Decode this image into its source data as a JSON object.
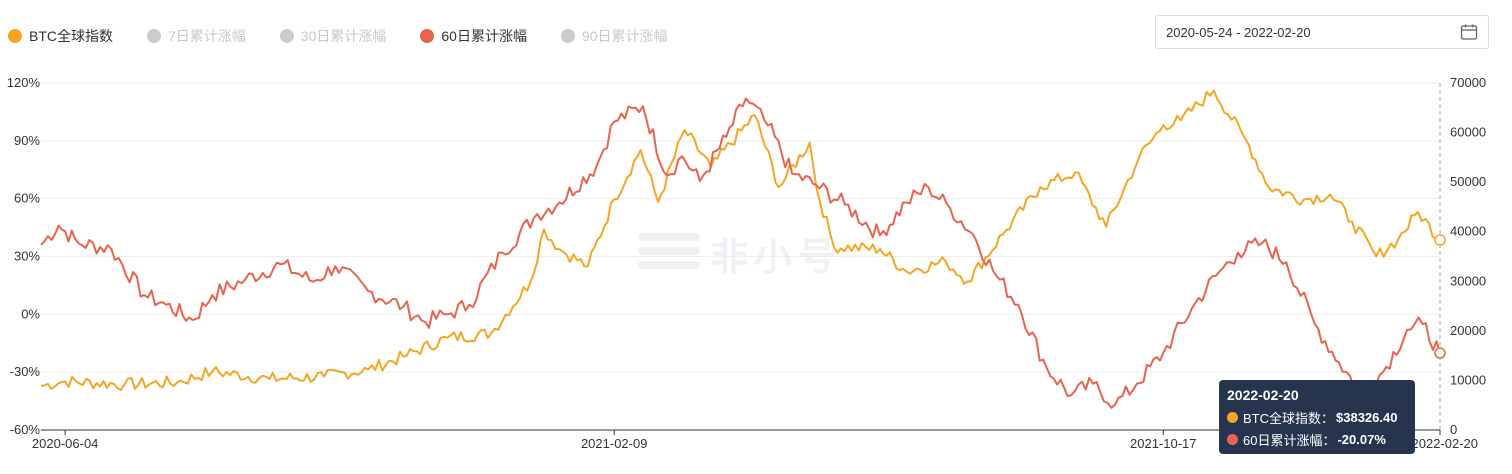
{
  "legend": {
    "items": [
      {
        "label": "BTC全球指数",
        "color": "#f5a623",
        "active": true
      },
      {
        "label": "7日累计涨幅",
        "color": "#cccccc",
        "active": false
      },
      {
        "label": "30日累计涨幅",
        "color": "#cccccc",
        "active": false
      },
      {
        "label": "60日累计涨幅",
        "color": "#e8644f",
        "active": true
      },
      {
        "label": "90日累计涨幅",
        "color": "#cccccc",
        "active": false
      }
    ]
  },
  "date_range": {
    "value": "2020-05-24 - 2022-02-20",
    "icon": "calendar-icon"
  },
  "watermark": {
    "text": "非小号"
  },
  "tooltip": {
    "date": "2022-02-20",
    "rows": [
      {
        "name": "BTC全球指数：",
        "value": "$38326.40",
        "color": "#f5a623"
      },
      {
        "name": "60日累计涨幅：",
        "value": "-20.07%",
        "color": "#e8644f"
      }
    ]
  },
  "chart_data": {
    "type": "line",
    "title": "",
    "x_ticks": [
      "2020-06-04",
      "2021-02-09",
      "2021-10-17",
      "2022-02-20"
    ],
    "x_range": [
      "2020-05-24",
      "2022-02-20"
    ],
    "y_left": {
      "ticks": [
        "120%",
        "90%",
        "60%",
        "30%",
        "0%",
        "-30%",
        "-60%"
      ],
      "min": -60,
      "max": 120,
      "unit": "%"
    },
    "y_right": {
      "ticks": [
        "70000",
        "60000",
        "50000",
        "40000",
        "30000",
        "20000",
        "10000",
        "0"
      ],
      "min": 0,
      "max": 70000
    },
    "grid": true,
    "series": [
      {
        "name": "BTC全球指数",
        "axis": "right",
        "color": "#f5a623",
        "points": [
          [
            "2020-05-24",
            8900
          ],
          [
            "2020-06-04",
            9800
          ],
          [
            "2020-07-01",
            9200
          ],
          [
            "2020-07-25",
            9600
          ],
          [
            "2020-08-10",
            11800
          ],
          [
            "2020-09-05",
            10300
          ],
          [
            "2020-09-30",
            10800
          ],
          [
            "2020-10-20",
            12200
          ],
          [
            "2020-11-05",
            14800
          ],
          [
            "2020-11-25",
            18600
          ],
          [
            "2020-12-15",
            19500
          ],
          [
            "2021-01-02",
            30000
          ],
          [
            "2021-01-08",
            40500
          ],
          [
            "2021-01-15",
            36500
          ],
          [
            "2021-01-28",
            33000
          ],
          [
            "2021-02-09",
            46500
          ],
          [
            "2021-02-21",
            56500
          ],
          [
            "2021-03-01",
            46000
          ],
          [
            "2021-03-13",
            60500
          ],
          [
            "2021-03-25",
            53000
          ],
          [
            "2021-04-14",
            63500
          ],
          [
            "2021-04-25",
            49000
          ],
          [
            "2021-05-09",
            58000
          ],
          [
            "2021-05-12",
            49000
          ],
          [
            "2021-05-20",
            37000
          ],
          [
            "2021-06-10",
            36500
          ],
          [
            "2021-06-22",
            32000
          ],
          [
            "2021-07-10",
            34000
          ],
          [
            "2021-07-20",
            30000
          ],
          [
            "2021-08-05",
            39500
          ],
          [
            "2021-08-22",
            49000
          ],
          [
            "2021-09-07",
            52000
          ],
          [
            "2021-09-21",
            41000
          ],
          [
            "2021-10-06",
            55000
          ],
          [
            "2021-10-17",
            61500
          ],
          [
            "2021-10-25",
            62500
          ],
          [
            "2021-11-09",
            68500
          ],
          [
            "2021-11-25",
            57500
          ],
          [
            "2021-12-04",
            49000
          ],
          [
            "2021-12-20",
            46500
          ],
          [
            "2022-01-01",
            47500
          ],
          [
            "2022-01-11",
            42000
          ],
          [
            "2022-01-22",
            35000
          ],
          [
            "2022-02-01",
            38500
          ],
          [
            "2022-02-10",
            44000
          ],
          [
            "2022-02-20",
            38326.4
          ]
        ]
      },
      {
        "name": "60日累计涨幅",
        "axis": "left",
        "color": "#e8644f",
        "points": [
          [
            "2020-05-24",
            36
          ],
          [
            "2020-06-01",
            46
          ],
          [
            "2020-06-10",
            37
          ],
          [
            "2020-06-25",
            34
          ],
          [
            "2020-07-10",
            10
          ],
          [
            "2020-07-20",
            5
          ],
          [
            "2020-08-01",
            -3
          ],
          [
            "2020-08-10",
            10
          ],
          [
            "2020-08-25",
            18
          ],
          [
            "2020-09-10",
            26
          ],
          [
            "2020-09-25",
            17
          ],
          [
            "2020-10-05",
            25
          ],
          [
            "2020-10-20",
            12
          ],
          [
            "2020-11-05",
            4
          ],
          [
            "2020-11-15",
            -4
          ],
          [
            "2020-11-25",
            0
          ],
          [
            "2020-12-05",
            5
          ],
          [
            "2020-12-20",
            32
          ],
          [
            "2021-01-05",
            52
          ],
          [
            "2021-01-15",
            58
          ],
          [
            "2021-02-01",
            77
          ],
          [
            "2021-02-09",
            100
          ],
          [
            "2021-02-22",
            108
          ],
          [
            "2021-03-05",
            72
          ],
          [
            "2021-03-12",
            82
          ],
          [
            "2021-03-20",
            69
          ],
          [
            "2021-04-01",
            92
          ],
          [
            "2021-04-10",
            112
          ],
          [
            "2021-04-20",
            98
          ],
          [
            "2021-05-01",
            73
          ],
          [
            "2021-05-12",
            67
          ],
          [
            "2021-05-25",
            57
          ],
          [
            "2021-06-10",
            41
          ],
          [
            "2021-06-22",
            58
          ],
          [
            "2021-07-02",
            66
          ],
          [
            "2021-07-12",
            55
          ],
          [
            "2021-07-22",
            42
          ],
          [
            "2021-08-02",
            20
          ],
          [
            "2021-08-12",
            5
          ],
          [
            "2021-08-25",
            -28
          ],
          [
            "2021-09-05",
            -42
          ],
          [
            "2021-09-15",
            -36
          ],
          [
            "2021-09-25",
            -47
          ],
          [
            "2021-10-05",
            -36
          ],
          [
            "2021-10-17",
            -20
          ],
          [
            "2021-10-30",
            3
          ],
          [
            "2021-11-10",
            20
          ],
          [
            "2021-11-20",
            32
          ],
          [
            "2021-12-01",
            37
          ],
          [
            "2021-12-12",
            27
          ],
          [
            "2021-12-25",
            -5
          ],
          [
            "2022-01-05",
            -25
          ],
          [
            "2022-01-15",
            -40
          ],
          [
            "2022-01-25",
            -30
          ],
          [
            "2022-02-05",
            -8
          ],
          [
            "2022-02-12",
            -5
          ],
          [
            "2022-02-20",
            -20.07
          ]
        ]
      }
    ]
  }
}
